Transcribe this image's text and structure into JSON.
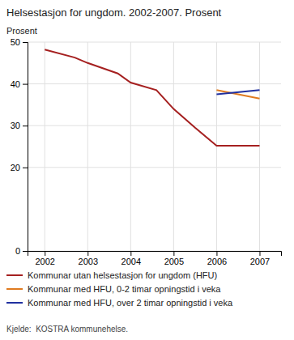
{
  "chart_data": {
    "type": "line",
    "title": "Helsestasjon for ungdom. 2002-2007. Prosent",
    "ylabel": "Prosent",
    "source": "Kjelde:  KOSTRA kommunehelse.",
    "xlim": [
      2001.6,
      2007.5
    ],
    "xticks": [
      2002,
      2003,
      2004,
      2005,
      2006,
      2007
    ],
    "ylim": [
      0,
      50
    ],
    "yticks": [
      0,
      20,
      30,
      40,
      50
    ],
    "grid": true,
    "legend": "bottom",
    "series": [
      {
        "name": "Kommunar utan helsestasjon for ungdom (HFU)",
        "color": "#a52020",
        "x": [
          2002,
          2002.7,
          2003,
          2003.7,
          2004,
          2004.6,
          2005,
          2005.5,
          2006,
          2006.5,
          2007
        ],
        "values": [
          48.2,
          46.3,
          45.0,
          42.5,
          40.3,
          38.5,
          34.0,
          29.5,
          25.2,
          25.2,
          25.2
        ]
      },
      {
        "name": "Kommunar med HFU, 0-2 timar opningstid i veka",
        "color": "#e07b20",
        "x": [
          2006,
          2007
        ],
        "values": [
          38.5,
          36.5
        ]
      },
      {
        "name": "Kommunar med HFU, over 2 timar opningstid i veka",
        "color": "#2030a0",
        "x": [
          2006,
          2007
        ],
        "values": [
          37.5,
          38.5
        ]
      }
    ]
  }
}
